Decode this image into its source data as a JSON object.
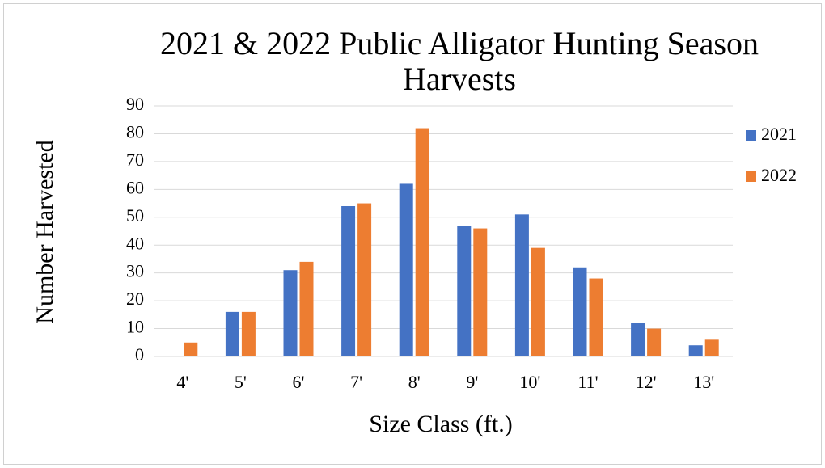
{
  "chart_data": {
    "type": "bar",
    "title": "2021 & 2022 Public Alligator Hunting Season Harvests",
    "x_label": "Size Class (ft.)",
    "y_label": "Number Harvested",
    "categories": [
      "4'",
      "5'",
      "6'",
      "7'",
      "8'",
      "9'",
      "10'",
      "11'",
      "12'",
      "13'"
    ],
    "series": [
      {
        "name": "2021",
        "color": "#4472c4",
        "values": [
          0,
          16,
          31,
          54,
          62,
          47,
          51,
          32,
          12,
          4
        ]
      },
      {
        "name": "2022",
        "color": "#ed7d31",
        "values": [
          5,
          16,
          34,
          55,
          82,
          46,
          39,
          28,
          10,
          6
        ]
      }
    ],
    "ylim": [
      0,
      90
    ],
    "yticks": [
      0,
      10,
      20,
      30,
      40,
      50,
      60,
      70,
      80,
      90
    ],
    "grid": true,
    "legend": "right"
  }
}
